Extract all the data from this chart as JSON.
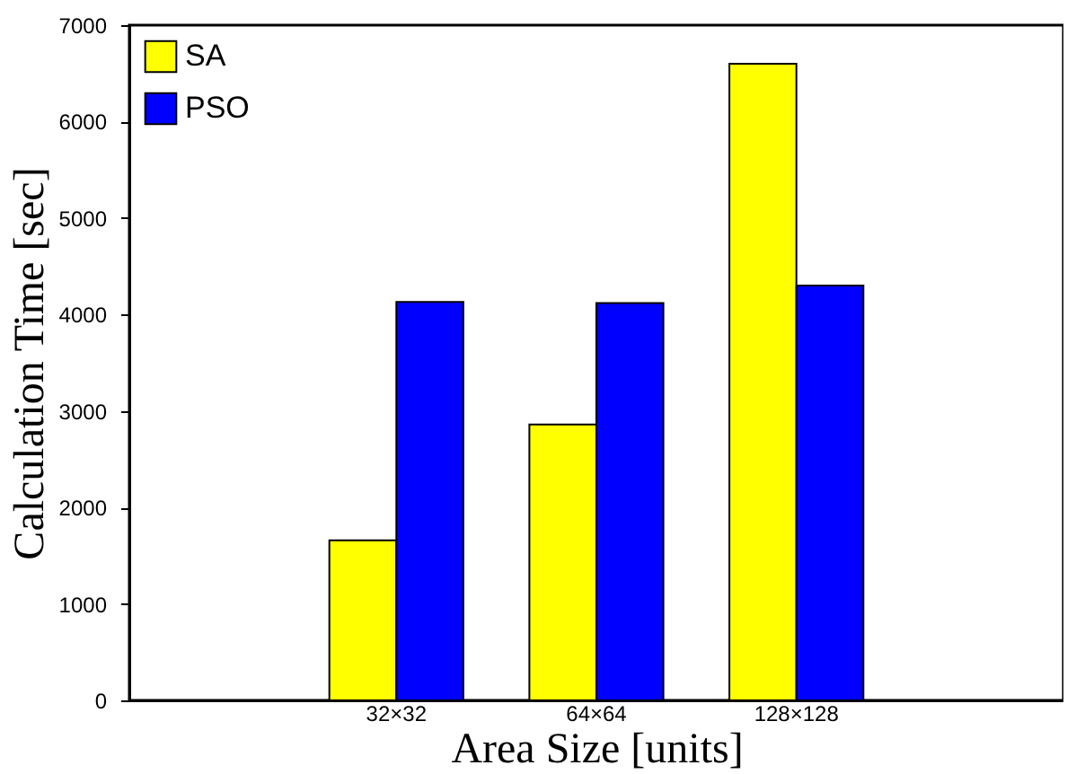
{
  "chart_data": {
    "type": "bar",
    "xlabel": "Area Size [units]",
    "ylabel": "Calculation Time [sec]",
    "categories": [
      "32×32",
      "64×64",
      "128×128"
    ],
    "series": [
      {
        "name": "SA",
        "color": "#ffff00",
        "values": [
          1660,
          2860,
          6600
        ]
      },
      {
        "name": "PSO",
        "color": "#0000ff",
        "values": [
          4130,
          4120,
          4300
        ]
      }
    ],
    "ylim": [
      0,
      7000
    ],
    "yticks": [
      0,
      1000,
      2000,
      3000,
      4000,
      5000,
      6000,
      7000
    ],
    "grid": false,
    "legend": "top left"
  }
}
